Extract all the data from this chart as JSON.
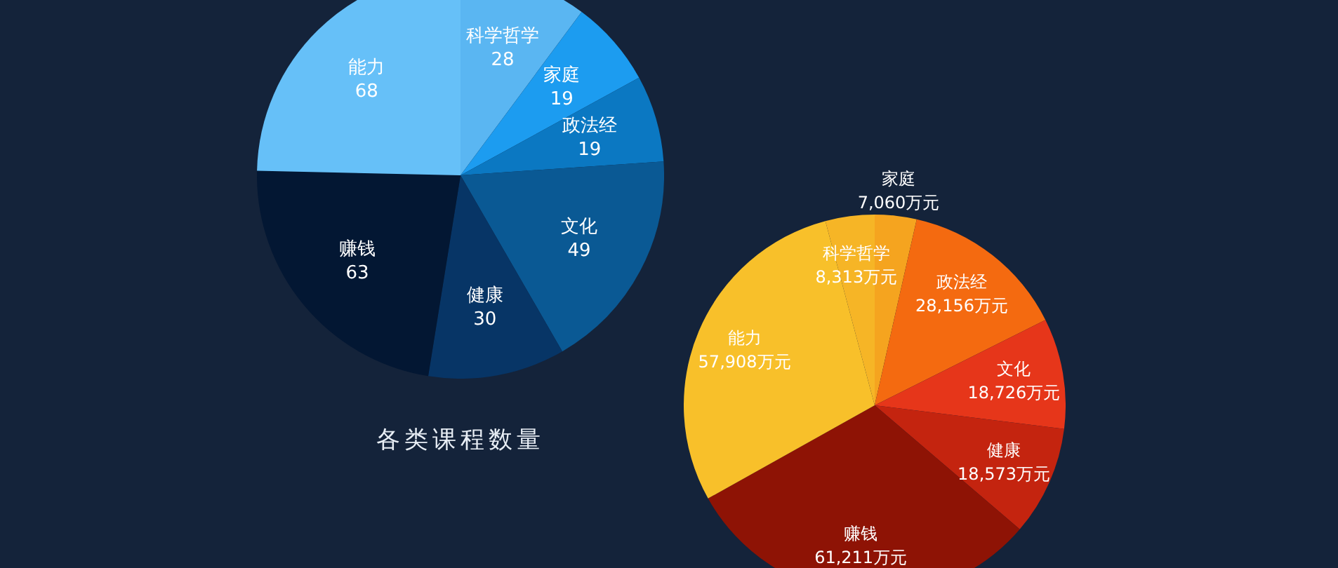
{
  "chart_data": [
    {
      "type": "pie",
      "title": "各类课程数量",
      "categories": [
        "科学哲学",
        "家庭",
        "政法经",
        "文化",
        "健康",
        "赚钱",
        "能力"
      ],
      "values": [
        28,
        19,
        19,
        49,
        30,
        63,
        68
      ],
      "colors": [
        "#5ab6f2",
        "#1c9cf0",
        "#0b78c2",
        "#0a5994",
        "#073566",
        "#031733",
        "#66c0f8"
      ],
      "data_labels": true
    },
    {
      "type": "pie",
      "categories": [
        "家庭",
        "政法经",
        "文化",
        "健康",
        "赚钱",
        "能力",
        "科学哲学"
      ],
      "values": [
        7060,
        28156,
        18726,
        18573,
        61211,
        57908,
        8313
      ],
      "colors": [
        "#f5a41f",
        "#f46a10",
        "#e6361a",
        "#c4240f",
        "#8e1305",
        "#f8c02a",
        "#f6b526"
      ],
      "value_labels": [
        "7,060万元",
        "28,156万元",
        "18,726万元",
        "18,573万元",
        "61,211万元",
        "57,908万元",
        "8,313万元"
      ]
    }
  ]
}
